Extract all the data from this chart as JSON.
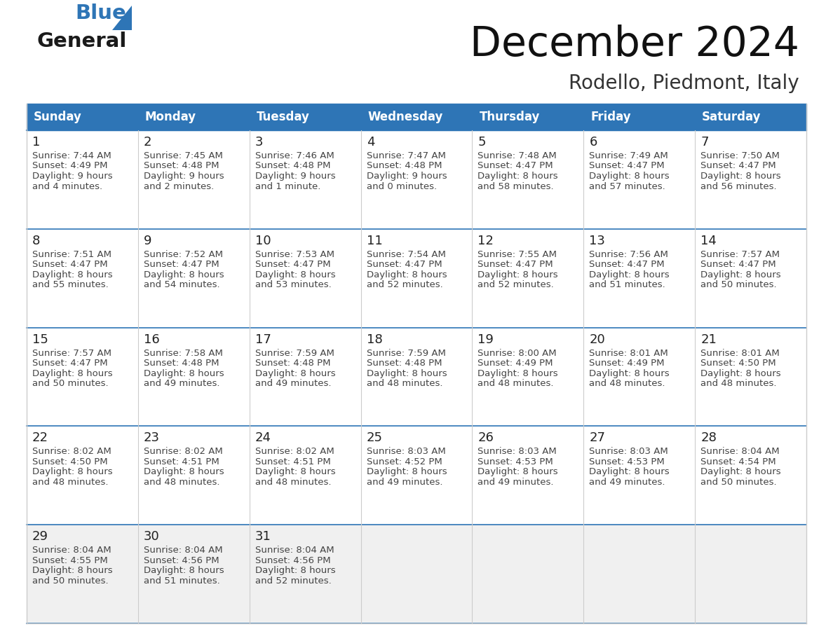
{
  "title": "December 2024",
  "subtitle": "Rodello, Piedmont, Italy",
  "header_bg_color": "#2E75B6",
  "header_text_color": "#FFFFFF",
  "row_bg_color": "#FFFFFF",
  "last_row_bg_color": "#F0F0F0",
  "row_separator_color": "#2E75B6",
  "col_separator_color": "#CCCCCC",
  "day_number_color": "#222222",
  "cell_text_color": "#444444",
  "days_of_week": [
    "Sunday",
    "Monday",
    "Tuesday",
    "Wednesday",
    "Thursday",
    "Friday",
    "Saturday"
  ],
  "logo_general_color": "#1a1a1a",
  "logo_blue_color": "#2E75B6",
  "calendar_data": [
    [
      {
        "day": "1",
        "sunrise": "7:44 AM",
        "sunset": "4:49 PM",
        "daylight_h": "9 hours",
        "daylight_m": "and 4 minutes."
      },
      {
        "day": "2",
        "sunrise": "7:45 AM",
        "sunset": "4:48 PM",
        "daylight_h": "9 hours",
        "daylight_m": "and 2 minutes."
      },
      {
        "day": "3",
        "sunrise": "7:46 AM",
        "sunset": "4:48 PM",
        "daylight_h": "9 hours",
        "daylight_m": "and 1 minute."
      },
      {
        "day": "4",
        "sunrise": "7:47 AM",
        "sunset": "4:48 PM",
        "daylight_h": "9 hours",
        "daylight_m": "and 0 minutes."
      },
      {
        "day": "5",
        "sunrise": "7:48 AM",
        "sunset": "4:47 PM",
        "daylight_h": "8 hours",
        "daylight_m": "and 58 minutes."
      },
      {
        "day": "6",
        "sunrise": "7:49 AM",
        "sunset": "4:47 PM",
        "daylight_h": "8 hours",
        "daylight_m": "and 57 minutes."
      },
      {
        "day": "7",
        "sunrise": "7:50 AM",
        "sunset": "4:47 PM",
        "daylight_h": "8 hours",
        "daylight_m": "and 56 minutes."
      }
    ],
    [
      {
        "day": "8",
        "sunrise": "7:51 AM",
        "sunset": "4:47 PM",
        "daylight_h": "8 hours",
        "daylight_m": "and 55 minutes."
      },
      {
        "day": "9",
        "sunrise": "7:52 AM",
        "sunset": "4:47 PM",
        "daylight_h": "8 hours",
        "daylight_m": "and 54 minutes."
      },
      {
        "day": "10",
        "sunrise": "7:53 AM",
        "sunset": "4:47 PM",
        "daylight_h": "8 hours",
        "daylight_m": "and 53 minutes."
      },
      {
        "day": "11",
        "sunrise": "7:54 AM",
        "sunset": "4:47 PM",
        "daylight_h": "8 hours",
        "daylight_m": "and 52 minutes."
      },
      {
        "day": "12",
        "sunrise": "7:55 AM",
        "sunset": "4:47 PM",
        "daylight_h": "8 hours",
        "daylight_m": "and 52 minutes."
      },
      {
        "day": "13",
        "sunrise": "7:56 AM",
        "sunset": "4:47 PM",
        "daylight_h": "8 hours",
        "daylight_m": "and 51 minutes."
      },
      {
        "day": "14",
        "sunrise": "7:57 AM",
        "sunset": "4:47 PM",
        "daylight_h": "8 hours",
        "daylight_m": "and 50 minutes."
      }
    ],
    [
      {
        "day": "15",
        "sunrise": "7:57 AM",
        "sunset": "4:47 PM",
        "daylight_h": "8 hours",
        "daylight_m": "and 50 minutes."
      },
      {
        "day": "16",
        "sunrise": "7:58 AM",
        "sunset": "4:48 PM",
        "daylight_h": "8 hours",
        "daylight_m": "and 49 minutes."
      },
      {
        "day": "17",
        "sunrise": "7:59 AM",
        "sunset": "4:48 PM",
        "daylight_h": "8 hours",
        "daylight_m": "and 49 minutes."
      },
      {
        "day": "18",
        "sunrise": "7:59 AM",
        "sunset": "4:48 PM",
        "daylight_h": "8 hours",
        "daylight_m": "and 48 minutes."
      },
      {
        "day": "19",
        "sunrise": "8:00 AM",
        "sunset": "4:49 PM",
        "daylight_h": "8 hours",
        "daylight_m": "and 48 minutes."
      },
      {
        "day": "20",
        "sunrise": "8:01 AM",
        "sunset": "4:49 PM",
        "daylight_h": "8 hours",
        "daylight_m": "and 48 minutes."
      },
      {
        "day": "21",
        "sunrise": "8:01 AM",
        "sunset": "4:50 PM",
        "daylight_h": "8 hours",
        "daylight_m": "and 48 minutes."
      }
    ],
    [
      {
        "day": "22",
        "sunrise": "8:02 AM",
        "sunset": "4:50 PM",
        "daylight_h": "8 hours",
        "daylight_m": "and 48 minutes."
      },
      {
        "day": "23",
        "sunrise": "8:02 AM",
        "sunset": "4:51 PM",
        "daylight_h": "8 hours",
        "daylight_m": "and 48 minutes."
      },
      {
        "day": "24",
        "sunrise": "8:02 AM",
        "sunset": "4:51 PM",
        "daylight_h": "8 hours",
        "daylight_m": "and 48 minutes."
      },
      {
        "day": "25",
        "sunrise": "8:03 AM",
        "sunset": "4:52 PM",
        "daylight_h": "8 hours",
        "daylight_m": "and 49 minutes."
      },
      {
        "day": "26",
        "sunrise": "8:03 AM",
        "sunset": "4:53 PM",
        "daylight_h": "8 hours",
        "daylight_m": "and 49 minutes."
      },
      {
        "day": "27",
        "sunrise": "8:03 AM",
        "sunset": "4:53 PM",
        "daylight_h": "8 hours",
        "daylight_m": "and 49 minutes."
      },
      {
        "day": "28",
        "sunrise": "8:04 AM",
        "sunset": "4:54 PM",
        "daylight_h": "8 hours",
        "daylight_m": "and 50 minutes."
      }
    ],
    [
      {
        "day": "29",
        "sunrise": "8:04 AM",
        "sunset": "4:55 PM",
        "daylight_h": "8 hours",
        "daylight_m": "and 50 minutes."
      },
      {
        "day": "30",
        "sunrise": "8:04 AM",
        "sunset": "4:56 PM",
        "daylight_h": "8 hours",
        "daylight_m": "and 51 minutes."
      },
      {
        "day": "31",
        "sunrise": "8:04 AM",
        "sunset": "4:56 PM",
        "daylight_h": "8 hours",
        "daylight_m": "and 52 minutes."
      },
      null,
      null,
      null,
      null
    ]
  ],
  "figsize": [
    11.88,
    9.18
  ],
  "dpi": 100
}
